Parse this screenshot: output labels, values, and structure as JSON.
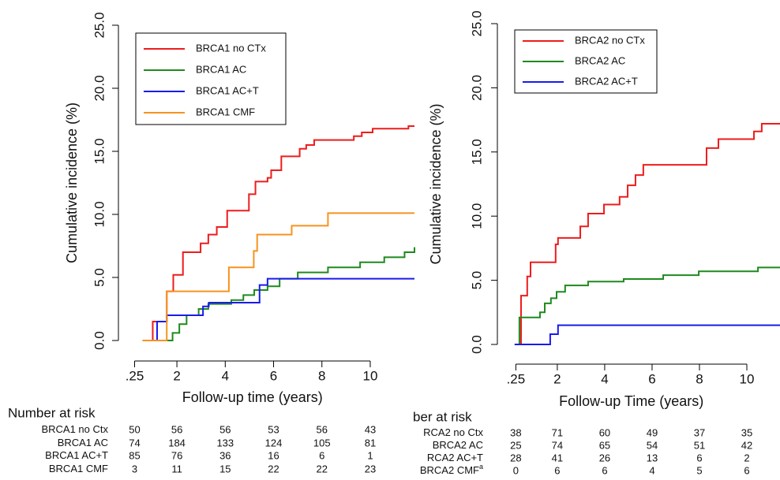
{
  "chart_data": [
    {
      "type": "line",
      "step": true,
      "x_label": "Follow-up time (years)",
      "y_label": "Cumulative incidence (%)",
      "xlim": [
        -0.42,
        11.83
      ],
      "ylim": [
        0,
        25
      ],
      "xticks": [
        {
          "value": 0.25,
          "label": ".25"
        },
        2,
        4,
        6,
        8,
        10
      ],
      "yticks": [
        {
          "value": 0,
          "label": "0.0"
        },
        {
          "value": 5,
          "label": "5.0"
        },
        {
          "value": 10,
          "label": "10.0"
        },
        {
          "value": 15,
          "label": "15.0"
        },
        {
          "value": 20,
          "label": "20.0"
        },
        {
          "value": 25,
          "label": "25.0"
        }
      ],
      "legend": "top-left",
      "series": [
        {
          "name": "BRCA1 no CTx",
          "color": "#ee1c1c",
          "x": [
            0.58,
            1.0,
            1.58,
            1.85,
            2.25,
            2.98,
            3.3,
            3.65,
            4.08,
            4.98,
            5.25,
            5.75,
            5.9,
            6.32,
            7.08,
            7.35,
            7.68,
            9.32,
            9.65,
            10.1,
            11.58,
            11.83
          ],
          "values": [
            0,
            1.5,
            3.9,
            5.2,
            7.0,
            7.7,
            8.4,
            9.0,
            10.3,
            11.6,
            12.6,
            12.9,
            13.5,
            14.6,
            15.2,
            15.5,
            15.9,
            16.2,
            16.5,
            16.8,
            17.0,
            17.0
          ]
        },
        {
          "name": "BRCA1 AC",
          "color": "#1e8a1e",
          "x": [
            0.58,
            1.65,
            1.82,
            2.1,
            2.4,
            2.9,
            3.3,
            4.25,
            4.75,
            5.2,
            5.75,
            6.25,
            7.0,
            8.25,
            9.58,
            10.58,
            11.42,
            11.83
          ],
          "values": [
            0,
            0,
            0.6,
            1.3,
            2.0,
            2.5,
            2.9,
            3.2,
            3.6,
            4.0,
            4.3,
            4.9,
            5.4,
            5.8,
            6.2,
            6.6,
            7.0,
            7.4
          ]
        },
        {
          "name": "BRCA1 AC+T",
          "color": "#1a1aee",
          "x": [
            0.58,
            1.18,
            1.58,
            3.08,
            3.32,
            5.42,
            5.75,
            11.83
          ],
          "values": [
            0,
            1.5,
            2.0,
            2.7,
            3.0,
            4.4,
            4.9,
            4.9
          ]
        },
        {
          "name": "BRCA1 CMF",
          "color": "#f7931e",
          "x": [
            0.58,
            1.58,
            4.15,
            5.18,
            5.32,
            6.75,
            8.25,
            11.83
          ],
          "values": [
            0,
            3.9,
            5.8,
            7.1,
            8.4,
            9.1,
            10.1,
            10.1
          ]
        }
      ],
      "risk_table": {
        "title": "Number at risk",
        "rows": [
          {
            "name": "BRCA1 no Ctx",
            "values": [
              50,
              56,
              56,
              53,
              56,
              43
            ]
          },
          {
            "name": "BRCA1 AC",
            "values": [
              74,
              184,
              133,
              124,
              105,
              81
            ]
          },
          {
            "name": "BRCA1 AC+T",
            "values": [
              85,
              76,
              36,
              16,
              6,
              1
            ]
          },
          {
            "name": "BRCA1 CMF",
            "values": [
              3,
              11,
              15,
              22,
              22,
              23
            ]
          }
        ]
      }
    },
    {
      "type": "line",
      "step": true,
      "x_label": "Follow-up Time (years)",
      "y_label": "Cumulative incidence (%)",
      "xlim": [
        -0.53,
        11.4
      ],
      "ylim": [
        0,
        25
      ],
      "xticks": [
        {
          "value": 0.25,
          "label": ".25"
        },
        2,
        4,
        6,
        8,
        10
      ],
      "yticks": [
        {
          "value": 0,
          "label": "0.0"
        },
        {
          "value": 5,
          "label": "5.0"
        },
        {
          "value": 10,
          "label": "10.0"
        },
        {
          "value": 15,
          "label": "15.0"
        },
        {
          "value": 20,
          "label": "20.0"
        },
        {
          "value": 25,
          "label": "25.0"
        }
      ],
      "legend": "top-left",
      "series": [
        {
          "name": "BRCA2 no CTx",
          "color": "#ee1c1c",
          "x": [
            0.2,
            0.47,
            0.73,
            0.87,
            1.93,
            2.03,
            2.97,
            3.3,
            3.97,
            4.63,
            4.97,
            5.3,
            5.63,
            8.3,
            8.8,
            10.3,
            10.63,
            11.4
          ],
          "values": [
            0,
            3.8,
            5.3,
            6.4,
            7.8,
            8.3,
            9.2,
            10.2,
            10.9,
            11.5,
            12.4,
            13.2,
            14.0,
            15.3,
            16.0,
            16.6,
            17.2,
            17.2
          ]
        },
        {
          "name": "BRCA2 AC",
          "color": "#1e8a1e",
          "x": [
            0.2,
            0.4,
            1.27,
            1.47,
            1.73,
            1.97,
            2.33,
            3.3,
            4.8,
            6.47,
            7.97,
            10.47,
            11.4
          ],
          "values": [
            0,
            2.1,
            2.5,
            3.2,
            3.6,
            4.1,
            4.6,
            4.9,
            5.1,
            5.4,
            5.7,
            6.0,
            6.0
          ]
        },
        {
          "name": "BRCA2 AC+T",
          "color": "#1a1aee",
          "x": [
            0.2,
            1.7,
            2.03,
            11.4
          ],
          "values": [
            0,
            0.8,
            1.5,
            1.5
          ]
        }
      ],
      "risk_table": {
        "title": "ber at risk",
        "rows": [
          {
            "name": "RCA2 no Ctx",
            "values": [
              38,
              71,
              60,
              49,
              37,
              35
            ]
          },
          {
            "name": "BRCA2 AC",
            "values": [
              25,
              74,
              65,
              54,
              51,
              42
            ]
          },
          {
            "name": "RCA2 AC+T",
            "values": [
              28,
              41,
              26,
              13,
              6,
              2
            ]
          },
          {
            "name": "BRCA2 CMF",
            "superscript": "a",
            "values": [
              0,
              6,
              6,
              4,
              5,
              6
            ]
          }
        ]
      }
    }
  ]
}
